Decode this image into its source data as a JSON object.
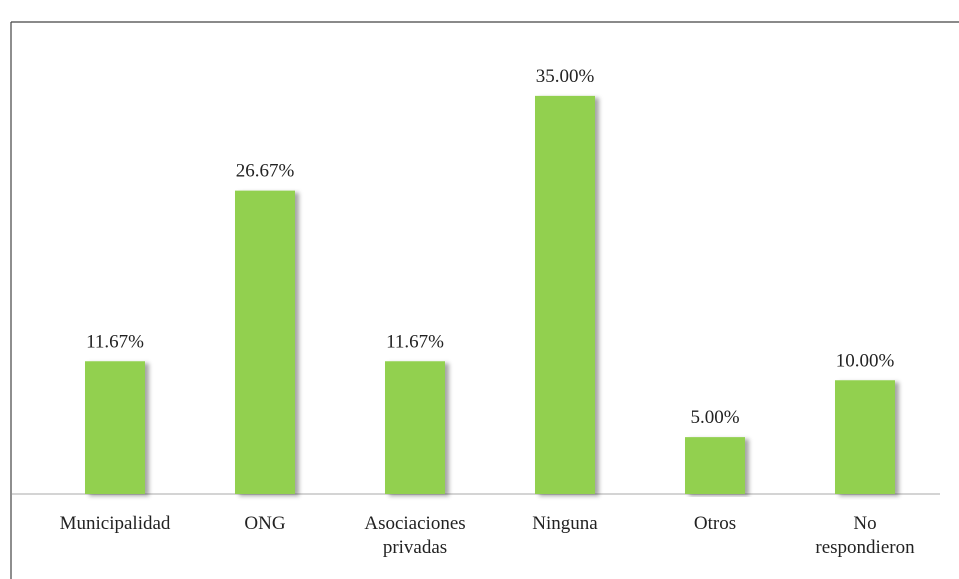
{
  "chart_data": {
    "type": "bar",
    "categories": [
      "Municipalidad",
      "ONG",
      "Asociaciones\nprivadas",
      "Ninguna",
      "Otros",
      "No\nrespondieron"
    ],
    "values": [
      11.67,
      26.67,
      11.67,
      35,
      5,
      10
    ],
    "value_labels": [
      "11.67%",
      "26.67%",
      "11.67%",
      "35.00%",
      "5.00%",
      "10.00%"
    ],
    "color": "#92d050",
    "ylim": [
      0,
      40
    ]
  }
}
